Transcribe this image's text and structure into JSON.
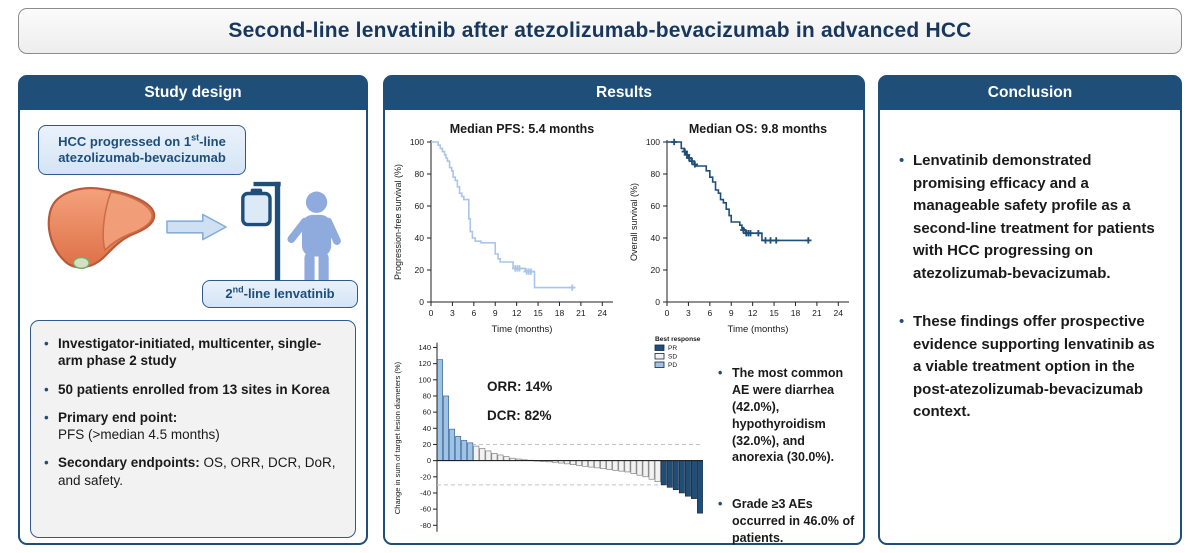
{
  "title": "Second-line lenvatinib after atezolizumab-bevacizumab in advanced HCC",
  "colors": {
    "accent_navy": "#1f4e79",
    "light_blue_fill": "#dbe7f6",
    "pfs_curve": "#a9c5e8",
    "os_curve": "#1f4e79",
    "person_blue": "#8faadc",
    "liver_orange": "#ec8f68"
  },
  "study_design": {
    "header": "Study design",
    "top_box": {
      "line1_pre": "HCC progressed on 1",
      "line1_sup": "st",
      "line1_post": "-line",
      "line2": "atezolizumab-bevacizumab"
    },
    "bottom_box": {
      "pre": "2",
      "sup": "nd",
      "post": "-line lenvatinib"
    },
    "bullets": [
      {
        "bold": "Investigator-initiated, multicenter, single-arm phase 2 study"
      },
      {
        "bold": "50 patients enrolled from 13 sites in Korea"
      },
      {
        "bold": "Primary end point:",
        "text": "PFS (>median 4.5 months)",
        "block": true
      },
      {
        "bold": "Secondary endpoints:",
        "text": "OS, ORR, DCR, DoR, and safety."
      }
    ]
  },
  "results": {
    "header": "Results",
    "bullets": [
      {
        "bold": "The most common AE were diarrhea (42.0%), hypothyroidism (32.0%), and anorexia (30.0%)."
      },
      {
        "bold": "Grade ≥3 AEs occurred in 46.0% of patients."
      }
    ]
  },
  "conclusion": {
    "header": "Conclusion",
    "bullets": [
      {
        "bold": "Lenvatinib demonstrated promising efficacy and a manageable safety profile as a second-line treatment for patients with HCC progressing on atezolizumab-bevacizumab."
      },
      {
        "bold": "These findings offer prospective evidence supporting lenvatinib as a viable treatment option in the post-atezolizumab-bevacizumab context."
      }
    ]
  },
  "chart_data": [
    {
      "type": "line",
      "subtype": "kaplan-meier",
      "title": "Median PFS: 5.4 months",
      "xlabel": "Time (months)",
      "ylabel": "Progression-free survival (%)",
      "xlim": [
        0,
        25.5
      ],
      "xticks": [
        0,
        3,
        6,
        9,
        12,
        15,
        18,
        21,
        24
      ],
      "ylim": [
        0,
        100
      ],
      "yticks": [
        0,
        20,
        40,
        60,
        80,
        100
      ],
      "color": "#a9c5e8",
      "steps": [
        [
          0,
          100
        ],
        [
          1,
          98
        ],
        [
          1.3,
          96
        ],
        [
          1.6,
          94
        ],
        [
          1.9,
          92
        ],
        [
          2.1,
          90
        ],
        [
          2.3,
          88
        ],
        [
          2.6,
          84
        ],
        [
          2.9,
          82
        ],
        [
          3.1,
          78
        ],
        [
          3.4,
          76
        ],
        [
          3.7,
          72
        ],
        [
          4.0,
          68
        ],
        [
          4.3,
          66
        ],
        [
          4.6,
          64
        ],
        [
          5.3,
          52
        ],
        [
          5.5,
          44
        ],
        [
          5.8,
          40
        ],
        [
          6.2,
          38
        ],
        [
          7.0,
          37
        ],
        [
          9.0,
          30
        ],
        [
          9.4,
          27
        ],
        [
          9.7,
          25
        ],
        [
          11.5,
          21
        ],
        [
          13.2,
          19
        ],
        [
          14.5,
          9
        ],
        [
          19.9,
          9
        ]
      ],
      "censors": [
        [
          11.8,
          21
        ],
        [
          12.1,
          21
        ],
        [
          12.4,
          21
        ],
        [
          13.4,
          19
        ],
        [
          13.7,
          19
        ],
        [
          14.0,
          19
        ],
        [
          19.8,
          9
        ]
      ]
    },
    {
      "type": "line",
      "subtype": "kaplan-meier",
      "title": "Median OS: 9.8 months",
      "xlabel": "Time (months)",
      "ylabel": "Overall survival (%)",
      "xlim": [
        0,
        25.5
      ],
      "xticks": [
        0,
        3,
        6,
        9,
        12,
        15,
        18,
        21,
        24
      ],
      "ylim": [
        0,
        100
      ],
      "yticks": [
        0,
        20,
        40,
        60,
        80,
        100
      ],
      "color": "#1f4e79",
      "steps": [
        [
          0,
          100
        ],
        [
          2,
          96
        ],
        [
          2.4,
          94
        ],
        [
          2.7,
          92
        ],
        [
          3.0,
          90
        ],
        [
          3.4,
          88
        ],
        [
          3.8,
          86
        ],
        [
          4.1,
          85
        ],
        [
          5.5,
          82
        ],
        [
          6.0,
          78
        ],
        [
          6.4,
          75
        ],
        [
          6.8,
          70
        ],
        [
          7.2,
          68
        ],
        [
          7.5,
          64
        ],
        [
          7.9,
          62
        ],
        [
          8.3,
          58
        ],
        [
          8.7,
          54
        ],
        [
          9.0,
          50
        ],
        [
          10.2,
          48
        ],
        [
          10.5,
          46
        ],
        [
          10.8,
          45
        ],
        [
          11.0,
          43
        ],
        [
          13.3,
          38.5
        ],
        [
          19.9,
          38.5
        ]
      ],
      "censors": [
        [
          1.0,
          100
        ],
        [
          2.5,
          94
        ],
        [
          2.8,
          92
        ],
        [
          3.1,
          90
        ],
        [
          3.5,
          88
        ],
        [
          3.9,
          86
        ],
        [
          10.7,
          45
        ],
        [
          11.1,
          43
        ],
        [
          11.4,
          43
        ],
        [
          11.7,
          43
        ],
        [
          12.8,
          43
        ],
        [
          13.8,
          38.5
        ],
        [
          14.5,
          38.5
        ],
        [
          15.3,
          38.5
        ],
        [
          19.8,
          38.5
        ]
      ]
    },
    {
      "type": "bar",
      "subtype": "waterfall",
      "ylabel": "Change in sum of target lesion diameters (%)",
      "ylim": [
        -90,
        148
      ],
      "yticks": [
        140,
        120,
        100,
        80,
        60,
        40,
        20,
        0,
        -20,
        -40,
        -60,
        -80
      ],
      "reference_lines": [
        20,
        -30
      ],
      "annotations": [
        "ORR: 14%",
        "DCR: 82%"
      ],
      "legend_title": "Best response",
      "legend": [
        {
          "label": "PR",
          "color": "#1f4e79"
        },
        {
          "label": "SD",
          "color": "#f2f2f2"
        },
        {
          "label": "PD",
          "color": "#9dc3e6"
        }
      ],
      "values": [
        [
          125,
          "PD"
        ],
        [
          80,
          "PD"
        ],
        [
          39,
          "PD"
        ],
        [
          30,
          "PD"
        ],
        [
          25,
          "PD"
        ],
        [
          22,
          "PD"
        ],
        [
          18,
          "SD"
        ],
        [
          15,
          "SD"
        ],
        [
          12,
          "SD"
        ],
        [
          9,
          "SD"
        ],
        [
          7,
          "SD"
        ],
        [
          5,
          "SD"
        ],
        [
          3,
          "SD"
        ],
        [
          2,
          "SD"
        ],
        [
          1,
          "SD"
        ],
        [
          0.5,
          "SD"
        ],
        [
          -0.5,
          "SD"
        ],
        [
          -1,
          "SD"
        ],
        [
          -1.5,
          "SD"
        ],
        [
          -2,
          "SD"
        ],
        [
          -3,
          "SD"
        ],
        [
          -4,
          "SD"
        ],
        [
          -5,
          "SD"
        ],
        [
          -6,
          "SD"
        ],
        [
          -7,
          "SD"
        ],
        [
          -8,
          "SD"
        ],
        [
          -9,
          "SD"
        ],
        [
          -10,
          "SD"
        ],
        [
          -11,
          "SD"
        ],
        [
          -12,
          "SD"
        ],
        [
          -13,
          "SD"
        ],
        [
          -14,
          "SD"
        ],
        [
          -16,
          "SD"
        ],
        [
          -18,
          "SD"
        ],
        [
          -20,
          "SD"
        ],
        [
          -23,
          "SD"
        ],
        [
          -26,
          "SD"
        ],
        [
          -30,
          "PR"
        ],
        [
          -33,
          "PR"
        ],
        [
          -36,
          "PR"
        ],
        [
          -40,
          "PR"
        ],
        [
          -44,
          "PR"
        ],
        [
          -47,
          "PR"
        ],
        [
          -65,
          "PR"
        ]
      ]
    }
  ]
}
